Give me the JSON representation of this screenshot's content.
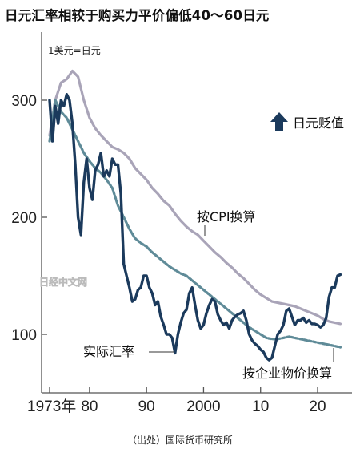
{
  "title": "日元汇率相较于购买力平价偏低40～60日元",
  "source": "（出处）国际货币研究所",
  "watermark": "日经中文网",
  "colors": {
    "actual": "#1b3a5c",
    "cpi": "#a9a4b8",
    "ppi": "#5f8b98",
    "axis": "#555555"
  },
  "chart_data": {
    "type": "line",
    "unit_label": "1美元=日元",
    "ylim": [
      50,
      340
    ],
    "xlim": [
      1972.5,
      2025
    ],
    "yticks": [
      100,
      200,
      300
    ],
    "ytick_labels": [
      "100",
      "200",
      "300"
    ],
    "xtick_labels": [
      "1973年",
      "80",
      "90",
      "2000",
      "10",
      "20"
    ],
    "xtick_years": [
      1973,
      1980,
      1990,
      2000,
      2010,
      2020
    ],
    "annotations": {
      "depreciation": "日元贬值",
      "cpi_label": "按CPI换算",
      "actual_label": "实际汇率",
      "ppi_label": "按企业物价换算"
    },
    "series": [
      {
        "name": "按CPI换算",
        "style": "solid",
        "x": [
          1973,
          1974,
          1975,
          1976,
          1977,
          1978,
          1979,
          1980,
          1981,
          1982,
          1983,
          1984,
          1985,
          1986,
          1987,
          1988,
          1989,
          1990,
          1991,
          1992,
          1993,
          1994,
          1995,
          1996,
          1997,
          1998,
          1999,
          2000,
          2001,
          2002,
          2003,
          2004,
          2005,
          2006,
          2007,
          2008,
          2009,
          2010,
          2011,
          2012,
          2013,
          2014,
          2015,
          2016,
          2017,
          2018,
          2019,
          2020,
          2021,
          2022,
          2023,
          2024
        ],
        "values": [
          270,
          300,
          315,
          318,
          325,
          320,
          300,
          285,
          276,
          270,
          265,
          260,
          258,
          255,
          250,
          242,
          237,
          232,
          225,
          220,
          214,
          210,
          203,
          197,
          192,
          188,
          185,
          180,
          175,
          170,
          166,
          161,
          157,
          152,
          148,
          143,
          138,
          134,
          131,
          128,
          127,
          126,
          125,
          124,
          122,
          120,
          118,
          116,
          113,
          111,
          110,
          109
        ]
      },
      {
        "name": "按企业物价换算",
        "style": "dashed",
        "x": [
          1973,
          1974,
          1975,
          1976,
          1977,
          1978,
          1979,
          1980,
          1981,
          1982,
          1983,
          1984,
          1985,
          1986,
          1987,
          1988,
          1989,
          1990,
          1991,
          1992,
          1993,
          1994,
          1995,
          1996,
          1997,
          1998,
          1999,
          2000,
          2001,
          2002,
          2003,
          2004,
          2005,
          2006,
          2007,
          2008,
          2009,
          2010,
          2011,
          2012,
          2013,
          2014,
          2015,
          2016,
          2017,
          2018,
          2019,
          2020,
          2021,
          2022,
          2023,
          2024
        ],
        "values": [
          265,
          300,
          290,
          285,
          275,
          265,
          255,
          248,
          242,
          238,
          232,
          225,
          210,
          200,
          190,
          182,
          178,
          175,
          170,
          166,
          162,
          158,
          155,
          152,
          150,
          146,
          142,
          138,
          134,
          130,
          126,
          122,
          118,
          114,
          110,
          106,
          103,
          100,
          97,
          96,
          96,
          97,
          98,
          97,
          96,
          95,
          94,
          93,
          92,
          91,
          90,
          89
        ]
      },
      {
        "name": "实际汇率",
        "style": "solid",
        "x": [
          1973,
          1973.5,
          1974,
          1974.5,
          1975,
          1975.5,
          1976,
          1976.5,
          1977,
          1977.5,
          1978,
          1978.5,
          1979,
          1979.5,
          1980,
          1980.5,
          1981,
          1981.5,
          1982,
          1982.5,
          1983,
          1983.5,
          1984,
          1984.5,
          1985,
          1985.5,
          1986,
          1986.5,
          1987,
          1987.5,
          1988,
          1988.5,
          1989,
          1989.5,
          1990,
          1990.5,
          1991,
          1991.5,
          1992,
          1992.5,
          1993,
          1993.5,
          1994,
          1994.5,
          1995,
          1995.5,
          1996,
          1996.5,
          1997,
          1997.5,
          1998,
          1998.5,
          1999,
          1999.5,
          2000,
          2000.5,
          2001,
          2001.5,
          2002,
          2002.5,
          2003,
          2003.5,
          2004,
          2004.5,
          2005,
          2005.5,
          2006,
          2006.5,
          2007,
          2007.5,
          2008,
          2008.5,
          2009,
          2009.5,
          2010,
          2010.5,
          2011,
          2011.5,
          2012,
          2012.5,
          2013,
          2013.5,
          2014,
          2014.5,
          2015,
          2015.5,
          2016,
          2016.5,
          2017,
          2017.5,
          2018,
          2018.5,
          2019,
          2019.5,
          2020,
          2020.5,
          2021,
          2021.5,
          2022,
          2022.5,
          2023,
          2023.5,
          2024
        ],
        "values": [
          300,
          265,
          295,
          280,
          300,
          295,
          305,
          300,
          280,
          245,
          200,
          185,
          230,
          250,
          225,
          215,
          240,
          245,
          255,
          235,
          240,
          235,
          250,
          245,
          245,
          220,
          160,
          150,
          140,
          128,
          130,
          138,
          140,
          150,
          150,
          140,
          135,
          125,
          128,
          115,
          108,
          100,
          100,
          97,
          84,
          100,
          110,
          118,
          121,
          135,
          140,
          125,
          112,
          105,
          108,
          118,
          125,
          130,
          128,
          117,
          112,
          108,
          110,
          105,
          112,
          115,
          117,
          118,
          120,
          112,
          100,
          95,
          92,
          90,
          87,
          85,
          80,
          78,
          80,
          90,
          100,
          103,
          108,
          120,
          122,
          115,
          108,
          112,
          112,
          114,
          110,
          112,
          109,
          109,
          108,
          106,
          108,
          114,
          132,
          140,
          140,
          150,
          151
        ]
      }
    ]
  }
}
